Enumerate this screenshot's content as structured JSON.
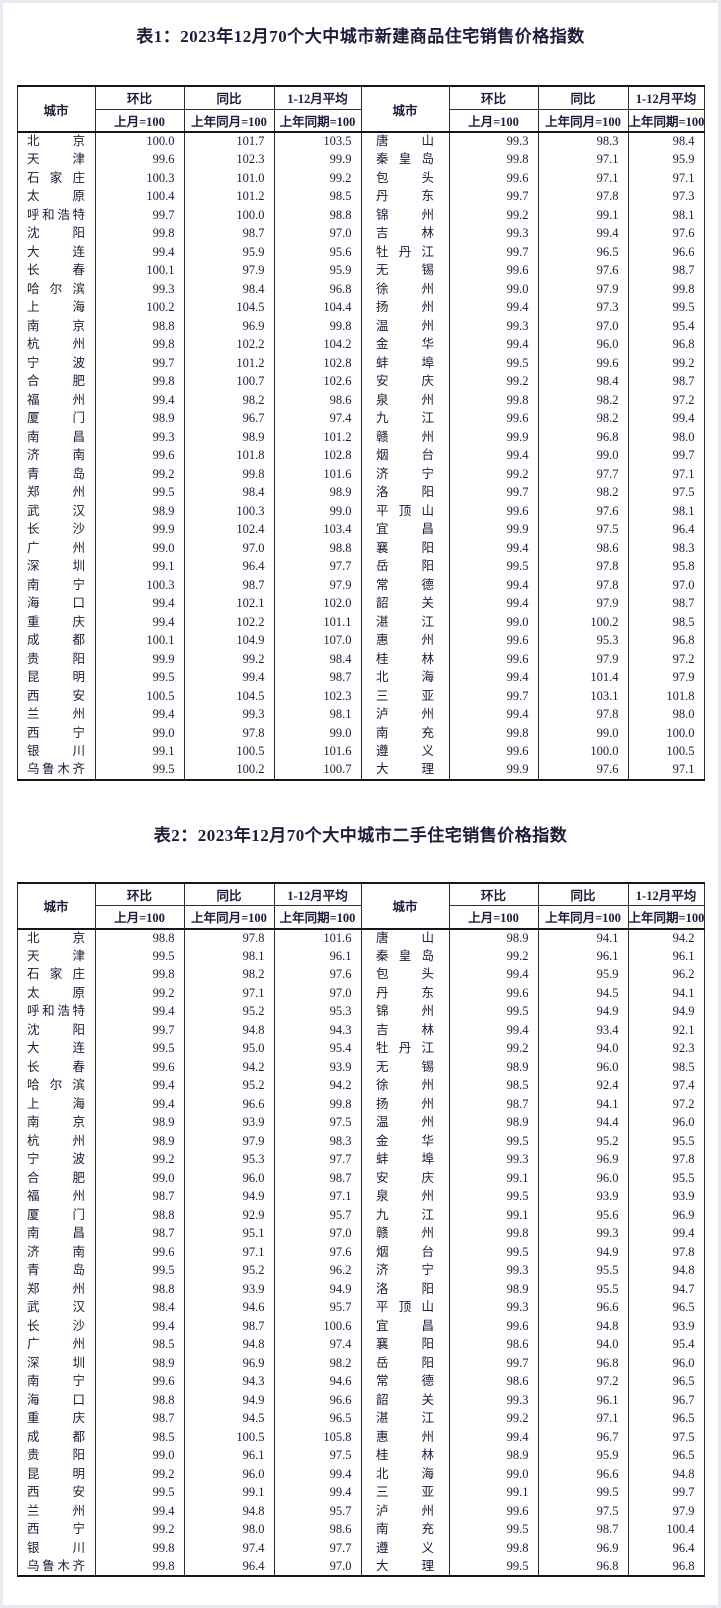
{
  "columns": {
    "city": "城市",
    "mom": "环比",
    "mom_base": "上月=100",
    "yoy": "同比",
    "yoy_base": "上年同月=100",
    "avg": "1-12月平均",
    "avg_base": "上年同期=100"
  },
  "table1": {
    "title": "表1：2023年12月70个大中城市新建商品住宅销售价格指数",
    "left_rows": [
      [
        "北京",
        "100.0",
        "101.7",
        "103.5"
      ],
      [
        "天津",
        "99.6",
        "102.3",
        "99.9"
      ],
      [
        "石家庄",
        "100.3",
        "101.0",
        "99.2"
      ],
      [
        "太原",
        "100.4",
        "101.2",
        "98.5"
      ],
      [
        "呼和浩特",
        "99.7",
        "100.0",
        "98.8"
      ],
      [
        "沈阳",
        "99.8",
        "98.7",
        "97.0"
      ],
      [
        "大连",
        "99.4",
        "95.9",
        "95.6"
      ],
      [
        "长春",
        "100.1",
        "97.9",
        "95.9"
      ],
      [
        "哈尔滨",
        "99.3",
        "98.4",
        "96.8"
      ],
      [
        "上海",
        "100.2",
        "104.5",
        "104.4"
      ],
      [
        "南京",
        "98.8",
        "96.9",
        "99.8"
      ],
      [
        "杭州",
        "99.8",
        "102.2",
        "104.2"
      ],
      [
        "宁波",
        "99.7",
        "101.2",
        "102.8"
      ],
      [
        "合肥",
        "99.8",
        "100.7",
        "102.6"
      ],
      [
        "福州",
        "99.4",
        "98.2",
        "98.6"
      ],
      [
        "厦门",
        "98.9",
        "96.7",
        "97.4"
      ],
      [
        "南昌",
        "99.3",
        "98.9",
        "101.2"
      ],
      [
        "济南",
        "99.6",
        "101.8",
        "102.8"
      ],
      [
        "青岛",
        "99.2",
        "99.8",
        "101.6"
      ],
      [
        "郑州",
        "99.5",
        "98.4",
        "98.9"
      ],
      [
        "武汉",
        "98.9",
        "100.3",
        "99.0"
      ],
      [
        "长沙",
        "99.9",
        "102.4",
        "103.4"
      ],
      [
        "广州",
        "99.0",
        "97.0",
        "98.8"
      ],
      [
        "深圳",
        "99.1",
        "96.4",
        "97.7"
      ],
      [
        "南宁",
        "100.3",
        "98.7",
        "97.9"
      ],
      [
        "海口",
        "99.4",
        "102.1",
        "102.0"
      ],
      [
        "重庆",
        "99.4",
        "102.2",
        "101.1"
      ],
      [
        "成都",
        "100.1",
        "104.9",
        "107.0"
      ],
      [
        "贵阳",
        "99.9",
        "99.2",
        "98.4"
      ],
      [
        "昆明",
        "99.5",
        "99.4",
        "98.7"
      ],
      [
        "西安",
        "100.5",
        "104.5",
        "102.3"
      ],
      [
        "兰州",
        "99.4",
        "99.3",
        "98.1"
      ],
      [
        "西宁",
        "99.0",
        "97.8",
        "99.0"
      ],
      [
        "银川",
        "99.1",
        "100.5",
        "101.6"
      ],
      [
        "乌鲁木齐",
        "99.5",
        "100.2",
        "100.7"
      ]
    ],
    "right_rows": [
      [
        "唐山",
        "99.3",
        "98.3",
        "98.4"
      ],
      [
        "秦皇岛",
        "99.8",
        "97.1",
        "95.9"
      ],
      [
        "包头",
        "99.6",
        "97.1",
        "97.1"
      ],
      [
        "丹东",
        "99.7",
        "97.8",
        "97.3"
      ],
      [
        "锦州",
        "99.2",
        "99.1",
        "98.1"
      ],
      [
        "吉林",
        "99.3",
        "99.4",
        "97.6"
      ],
      [
        "牡丹江",
        "99.7",
        "96.5",
        "96.6"
      ],
      [
        "无锡",
        "99.6",
        "97.6",
        "98.7"
      ],
      [
        "徐州",
        "99.0",
        "97.9",
        "99.8"
      ],
      [
        "扬州",
        "99.4",
        "97.3",
        "99.5"
      ],
      [
        "温州",
        "99.3",
        "97.0",
        "95.4"
      ],
      [
        "金华",
        "99.4",
        "96.0",
        "96.8"
      ],
      [
        "蚌埠",
        "99.5",
        "99.6",
        "99.2"
      ],
      [
        "安庆",
        "99.2",
        "98.4",
        "98.7"
      ],
      [
        "泉州",
        "99.8",
        "98.2",
        "97.2"
      ],
      [
        "九江",
        "99.6",
        "98.2",
        "99.4"
      ],
      [
        "赣州",
        "99.9",
        "96.8",
        "98.0"
      ],
      [
        "烟台",
        "99.4",
        "99.0",
        "99.7"
      ],
      [
        "济宁",
        "99.2",
        "97.7",
        "97.1"
      ],
      [
        "洛阳",
        "99.7",
        "98.2",
        "97.5"
      ],
      [
        "平顶山",
        "99.6",
        "97.6",
        "98.1"
      ],
      [
        "宜昌",
        "99.9",
        "97.5",
        "96.4"
      ],
      [
        "襄阳",
        "99.4",
        "98.6",
        "98.3"
      ],
      [
        "岳阳",
        "99.5",
        "97.8",
        "95.8"
      ],
      [
        "常德",
        "99.4",
        "97.8",
        "97.0"
      ],
      [
        "韶关",
        "99.4",
        "97.9",
        "98.7"
      ],
      [
        "湛江",
        "99.0",
        "100.2",
        "98.5"
      ],
      [
        "惠州",
        "99.6",
        "95.3",
        "96.8"
      ],
      [
        "桂林",
        "99.6",
        "97.9",
        "97.2"
      ],
      [
        "北海",
        "99.4",
        "101.4",
        "97.9"
      ],
      [
        "三亚",
        "99.7",
        "103.1",
        "101.8"
      ],
      [
        "泸州",
        "99.4",
        "97.8",
        "98.0"
      ],
      [
        "南充",
        "99.8",
        "99.0",
        "100.0"
      ],
      [
        "遵义",
        "99.6",
        "100.0",
        "100.5"
      ],
      [
        "大理",
        "99.9",
        "97.6",
        "97.1"
      ]
    ]
  },
  "table2": {
    "title": "表2：2023年12月70个大中城市二手住宅销售价格指数",
    "left_rows": [
      [
        "北京",
        "98.8",
        "97.8",
        "101.6"
      ],
      [
        "天津",
        "99.5",
        "98.1",
        "96.1"
      ],
      [
        "石家庄",
        "99.8",
        "98.2",
        "97.6"
      ],
      [
        "太原",
        "99.2",
        "97.1",
        "97.0"
      ],
      [
        "呼和浩特",
        "99.4",
        "95.2",
        "95.3"
      ],
      [
        "沈阳",
        "99.7",
        "94.8",
        "94.3"
      ],
      [
        "大连",
        "99.5",
        "95.0",
        "95.4"
      ],
      [
        "长春",
        "99.6",
        "94.2",
        "93.9"
      ],
      [
        "哈尔滨",
        "99.4",
        "95.2",
        "94.2"
      ],
      [
        "上海",
        "99.4",
        "96.6",
        "99.8"
      ],
      [
        "南京",
        "98.9",
        "93.9",
        "97.5"
      ],
      [
        "杭州",
        "98.9",
        "97.9",
        "98.3"
      ],
      [
        "宁波",
        "99.2",
        "95.3",
        "97.7"
      ],
      [
        "合肥",
        "99.0",
        "96.0",
        "98.7"
      ],
      [
        "福州",
        "98.7",
        "94.9",
        "97.1"
      ],
      [
        "厦门",
        "98.8",
        "92.9",
        "95.7"
      ],
      [
        "南昌",
        "98.7",
        "95.1",
        "97.0"
      ],
      [
        "济南",
        "99.6",
        "97.1",
        "97.6"
      ],
      [
        "青岛",
        "99.5",
        "95.2",
        "96.2"
      ],
      [
        "郑州",
        "98.8",
        "93.9",
        "94.9"
      ],
      [
        "武汉",
        "98.4",
        "94.6",
        "95.7"
      ],
      [
        "长沙",
        "99.4",
        "98.7",
        "100.6"
      ],
      [
        "广州",
        "98.5",
        "94.8",
        "97.4"
      ],
      [
        "深圳",
        "98.9",
        "96.9",
        "98.2"
      ],
      [
        "南宁",
        "99.6",
        "94.3",
        "94.6"
      ],
      [
        "海口",
        "98.8",
        "94.9",
        "96.6"
      ],
      [
        "重庆",
        "98.7",
        "94.5",
        "96.5"
      ],
      [
        "成都",
        "98.5",
        "100.5",
        "105.8"
      ],
      [
        "贵阳",
        "99.0",
        "96.1",
        "97.5"
      ],
      [
        "昆明",
        "99.2",
        "96.0",
        "99.4"
      ],
      [
        "西安",
        "99.5",
        "99.1",
        "99.4"
      ],
      [
        "兰州",
        "99.4",
        "94.8",
        "95.7"
      ],
      [
        "西宁",
        "99.2",
        "98.0",
        "98.6"
      ],
      [
        "银川",
        "99.8",
        "97.4",
        "97.7"
      ],
      [
        "乌鲁木齐",
        "99.8",
        "96.4",
        "97.0"
      ]
    ],
    "right_rows": [
      [
        "唐山",
        "98.9",
        "94.1",
        "94.2"
      ],
      [
        "秦皇岛",
        "99.2",
        "96.1",
        "96.1"
      ],
      [
        "包头",
        "99.4",
        "95.9",
        "96.2"
      ],
      [
        "丹东",
        "99.6",
        "94.5",
        "94.1"
      ],
      [
        "锦州",
        "99.5",
        "94.9",
        "94.9"
      ],
      [
        "吉林",
        "99.4",
        "93.4",
        "92.1"
      ],
      [
        "牡丹江",
        "99.2",
        "94.0",
        "92.3"
      ],
      [
        "无锡",
        "98.9",
        "96.0",
        "98.5"
      ],
      [
        "徐州",
        "98.5",
        "92.4",
        "97.4"
      ],
      [
        "扬州",
        "98.7",
        "94.1",
        "97.2"
      ],
      [
        "温州",
        "98.9",
        "94.4",
        "96.0"
      ],
      [
        "金华",
        "99.5",
        "95.2",
        "95.5"
      ],
      [
        "蚌埠",
        "99.3",
        "96.9",
        "97.8"
      ],
      [
        "安庆",
        "99.1",
        "96.0",
        "95.5"
      ],
      [
        "泉州",
        "99.5",
        "93.9",
        "93.9"
      ],
      [
        "九江",
        "99.1",
        "95.6",
        "96.9"
      ],
      [
        "赣州",
        "99.8",
        "99.3",
        "99.4"
      ],
      [
        "烟台",
        "99.5",
        "94.9",
        "97.8"
      ],
      [
        "济宁",
        "99.3",
        "95.5",
        "94.8"
      ],
      [
        "洛阳",
        "98.9",
        "95.5",
        "94.7"
      ],
      [
        "平顶山",
        "99.3",
        "96.6",
        "96.5"
      ],
      [
        "宜昌",
        "99.6",
        "94.8",
        "93.9"
      ],
      [
        "襄阳",
        "98.6",
        "94.0",
        "95.4"
      ],
      [
        "岳阳",
        "99.7",
        "96.8",
        "96.0"
      ],
      [
        "常德",
        "98.6",
        "97.2",
        "96.5"
      ],
      [
        "韶关",
        "99.3",
        "96.1",
        "96.7"
      ],
      [
        "湛江",
        "99.2",
        "97.1",
        "96.5"
      ],
      [
        "惠州",
        "99.4",
        "96.7",
        "97.5"
      ],
      [
        "桂林",
        "98.9",
        "95.9",
        "96.5"
      ],
      [
        "北海",
        "99.0",
        "96.6",
        "94.8"
      ],
      [
        "三亚",
        "99.1",
        "99.5",
        "99.7"
      ],
      [
        "泸州",
        "99.6",
        "97.5",
        "97.9"
      ],
      [
        "南充",
        "99.5",
        "98.7",
        "100.4"
      ],
      [
        "遵义",
        "99.8",
        "96.9",
        "96.4"
      ],
      [
        "大理",
        "99.5",
        "96.8",
        "96.8"
      ]
    ]
  }
}
